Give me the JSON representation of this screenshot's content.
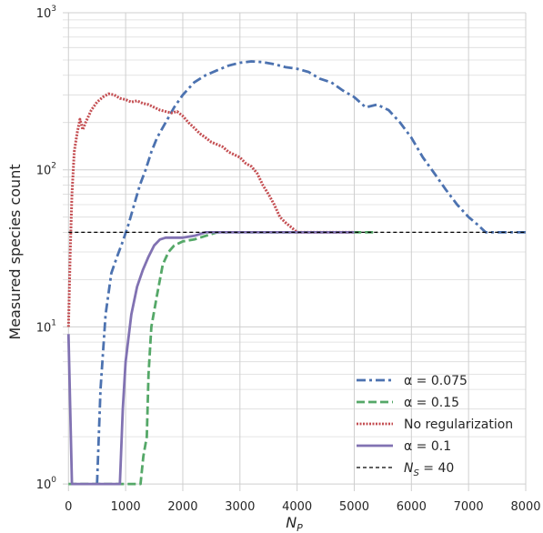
{
  "chart_data": {
    "type": "line",
    "title": "",
    "xlabel": "N_P",
    "ylabel": "Measured species count",
    "xlim": [
      -100,
      8000
    ],
    "ylim": [
      0.9,
      1000
    ],
    "yscale": "log",
    "grid": true,
    "legend_position": "lower-right",
    "x_ticks": [
      "0",
      "1000",
      "2000",
      "3000",
      "4000",
      "5000",
      "6000",
      "7000",
      "8000"
    ],
    "x_tick_values": [
      0,
      1000,
      2000,
      3000,
      4000,
      5000,
      6000,
      7000,
      8000
    ],
    "y_ticks": [
      {
        "base": "10",
        "exp": "0",
        "value": 1
      },
      {
        "base": "10",
        "exp": "1",
        "value": 10
      },
      {
        "base": "10",
        "exp": "2",
        "value": 100
      },
      {
        "base": "10",
        "exp": "3",
        "value": 1000
      }
    ],
    "series": [
      {
        "name": "α = 0.075",
        "color": "#4c72b0",
        "dash": "dashdot",
        "points": [
          [
            500,
            1
          ],
          [
            560,
            4
          ],
          [
            650,
            12
          ],
          [
            750,
            22
          ],
          [
            850,
            28
          ],
          [
            950,
            35
          ],
          [
            1050,
            45
          ],
          [
            1150,
            60
          ],
          [
            1250,
            80
          ],
          [
            1350,
            100
          ],
          [
            1450,
            130
          ],
          [
            1550,
            160
          ],
          [
            1700,
            200
          ],
          [
            1850,
            250
          ],
          [
            2000,
            300
          ],
          [
            2200,
            360
          ],
          [
            2400,
            400
          ],
          [
            2600,
            430
          ],
          [
            2800,
            460
          ],
          [
            3000,
            480
          ],
          [
            3200,
            490
          ],
          [
            3400,
            485
          ],
          [
            3600,
            470
          ],
          [
            3800,
            450
          ],
          [
            4000,
            440
          ],
          [
            4200,
            420
          ],
          [
            4400,
            380
          ],
          [
            4600,
            360
          ],
          [
            4800,
            320
          ],
          [
            5000,
            290
          ],
          [
            5200,
            250
          ],
          [
            5400,
            260
          ],
          [
            5600,
            240
          ],
          [
            5800,
            200
          ],
          [
            6000,
            160
          ],
          [
            6200,
            120
          ],
          [
            6400,
            95
          ],
          [
            6600,
            75
          ],
          [
            6800,
            60
          ],
          [
            7000,
            50
          ],
          [
            7150,
            45
          ],
          [
            7300,
            40
          ],
          [
            7500,
            40
          ],
          [
            8000,
            40
          ]
        ]
      },
      {
        "name": "α = 0.15",
        "color": "#55a868",
        "dash": "dashed",
        "points": [
          [
            0,
            1
          ],
          [
            1200,
            1
          ],
          [
            1260,
            1
          ],
          [
            1310,
            1.5
          ],
          [
            1370,
            2
          ],
          [
            1400,
            5
          ],
          [
            1450,
            10
          ],
          [
            1550,
            16
          ],
          [
            1650,
            25
          ],
          [
            1750,
            30
          ],
          [
            1850,
            33
          ],
          [
            2000,
            35
          ],
          [
            2200,
            36
          ],
          [
            2400,
            38
          ],
          [
            2600,
            40
          ],
          [
            3000,
            40
          ],
          [
            4000,
            40
          ],
          [
            5000,
            40
          ],
          [
            5400,
            40
          ]
        ]
      },
      {
        "name": "No regularization",
        "color": "#c44e52",
        "dash": "dotted",
        "points": [
          [
            0,
            10
          ],
          [
            30,
            30
          ],
          [
            60,
            70
          ],
          [
            100,
            130
          ],
          [
            150,
            170
          ],
          [
            200,
            210
          ],
          [
            250,
            180
          ],
          [
            300,
            200
          ],
          [
            400,
            240
          ],
          [
            500,
            270
          ],
          [
            600,
            290
          ],
          [
            700,
            305
          ],
          [
            800,
            300
          ],
          [
            900,
            285
          ],
          [
            1000,
            280
          ],
          [
            1100,
            270
          ],
          [
            1200,
            275
          ],
          [
            1300,
            265
          ],
          [
            1400,
            260
          ],
          [
            1500,
            250
          ],
          [
            1600,
            240
          ],
          [
            1700,
            235
          ],
          [
            1800,
            230
          ],
          [
            1900,
            235
          ],
          [
            2000,
            220
          ],
          [
            2100,
            200
          ],
          [
            2200,
            185
          ],
          [
            2300,
            170
          ],
          [
            2400,
            160
          ],
          [
            2500,
            150
          ],
          [
            2600,
            145
          ],
          [
            2700,
            140
          ],
          [
            2800,
            130
          ],
          [
            2900,
            125
          ],
          [
            3000,
            120
          ],
          [
            3100,
            110
          ],
          [
            3200,
            105
          ],
          [
            3300,
            95
          ],
          [
            3400,
            80
          ],
          [
            3500,
            70
          ],
          [
            3600,
            60
          ],
          [
            3700,
            50
          ],
          [
            3800,
            46
          ],
          [
            3900,
            43
          ],
          [
            4000,
            40
          ],
          [
            5000,
            40
          ]
        ]
      },
      {
        "name": "α = 0.1",
        "color": "#8172b2",
        "dash": "solid",
        "points": [
          [
            0,
            9
          ],
          [
            30,
            3
          ],
          [
            60,
            1
          ],
          [
            200,
            1
          ],
          [
            500,
            1
          ],
          [
            900,
            1
          ],
          [
            950,
            3
          ],
          [
            1000,
            6
          ],
          [
            1100,
            12
          ],
          [
            1200,
            18
          ],
          [
            1300,
            23
          ],
          [
            1400,
            28
          ],
          [
            1500,
            33
          ],
          [
            1600,
            36
          ],
          [
            1700,
            37
          ],
          [
            1800,
            37
          ],
          [
            1900,
            37
          ],
          [
            2000,
            37
          ],
          [
            2200,
            38
          ],
          [
            2400,
            40
          ],
          [
            3000,
            40
          ],
          [
            4000,
            40
          ],
          [
            5000,
            40
          ]
        ]
      },
      {
        "name": "N_S = 40",
        "color": "#000000",
        "dash": "fine-dashed",
        "points": [
          [
            0,
            40
          ],
          [
            8000,
            40
          ]
        ]
      }
    ],
    "legend": [
      {
        "label": "α = 0.075",
        "math": true,
        "color": "#4c72b0",
        "dash": "dashdot"
      },
      {
        "label": "α = 0.15",
        "math": true,
        "color": "#55a868",
        "dash": "dashed"
      },
      {
        "label": "No regularization",
        "math": false,
        "color": "#c44e52",
        "dash": "dotted"
      },
      {
        "label": "α = 0.1",
        "math": true,
        "color": "#8172b2",
        "dash": "solid"
      },
      {
        "label": "N_S = 40",
        "math": true,
        "color": "#000000",
        "dash": "fine-dashed"
      }
    ]
  }
}
